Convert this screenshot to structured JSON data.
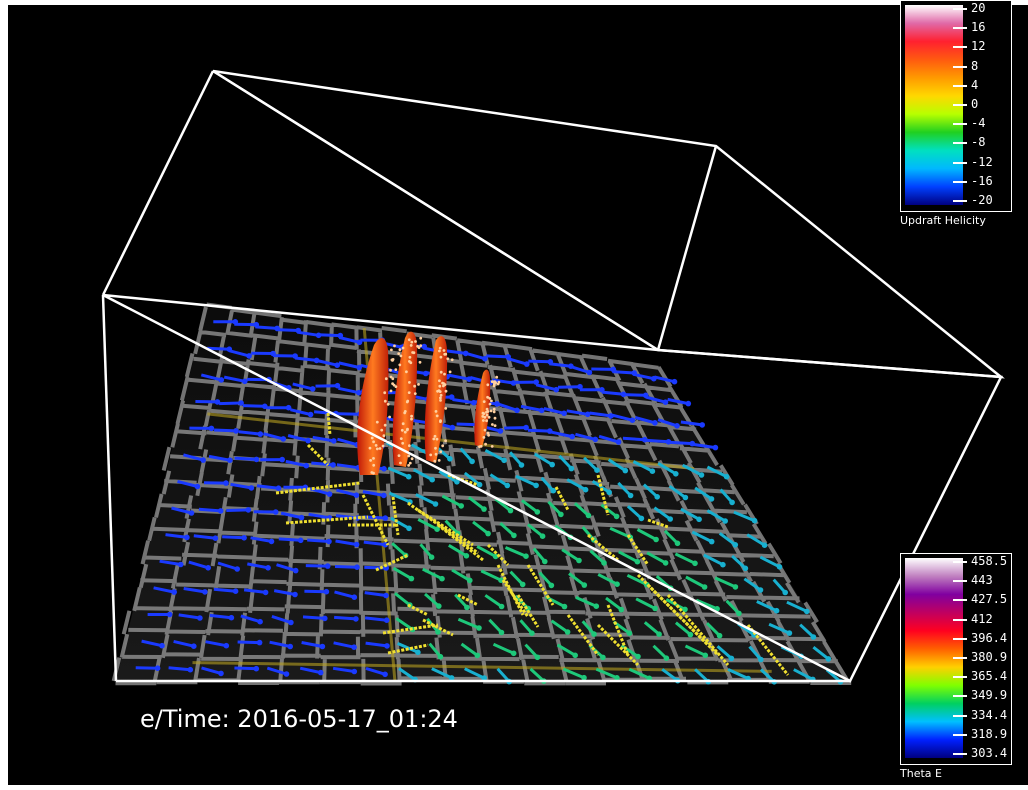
{
  "overlay": {
    "datetime_text": "e/Time: 2016-05-17_01:24"
  },
  "legend_updraft": {
    "title": "Updraft Helicity",
    "ticks": [
      "20",
      "16",
      "12",
      "8",
      "4",
      "0",
      "-4",
      "-8",
      "-12",
      "-16",
      "-20"
    ],
    "gradient": [
      "#ffffff",
      "#e06aa8",
      "#ff2030",
      "#ff5a10",
      "#ff9a00",
      "#ffd800",
      "#b8ff00",
      "#20d020",
      "#00e0c0",
      "#00b8ff",
      "#0040ff",
      "#000080"
    ]
  },
  "legend_theta": {
    "title": "Theta E",
    "ticks": [
      "458.5",
      "443",
      "427.5",
      "412",
      "396.4",
      "380.9",
      "365.4",
      "349.9",
      "334.4",
      "318.9",
      "303.4"
    ],
    "gradient": [
      "#ffffff",
      "#c080c0",
      "#8000a0",
      "#c00060",
      "#ff0020",
      "#ff6000",
      "#ffd000",
      "#80ff00",
      "#00d060",
      "#00c0ff",
      "#0020ff",
      "#000080"
    ]
  },
  "colors": {
    "background": "#000000",
    "box": "#ffffff",
    "roads": "#9a9a9a",
    "tracer": "#f0e030",
    "updraft": "#ff5a10"
  }
}
